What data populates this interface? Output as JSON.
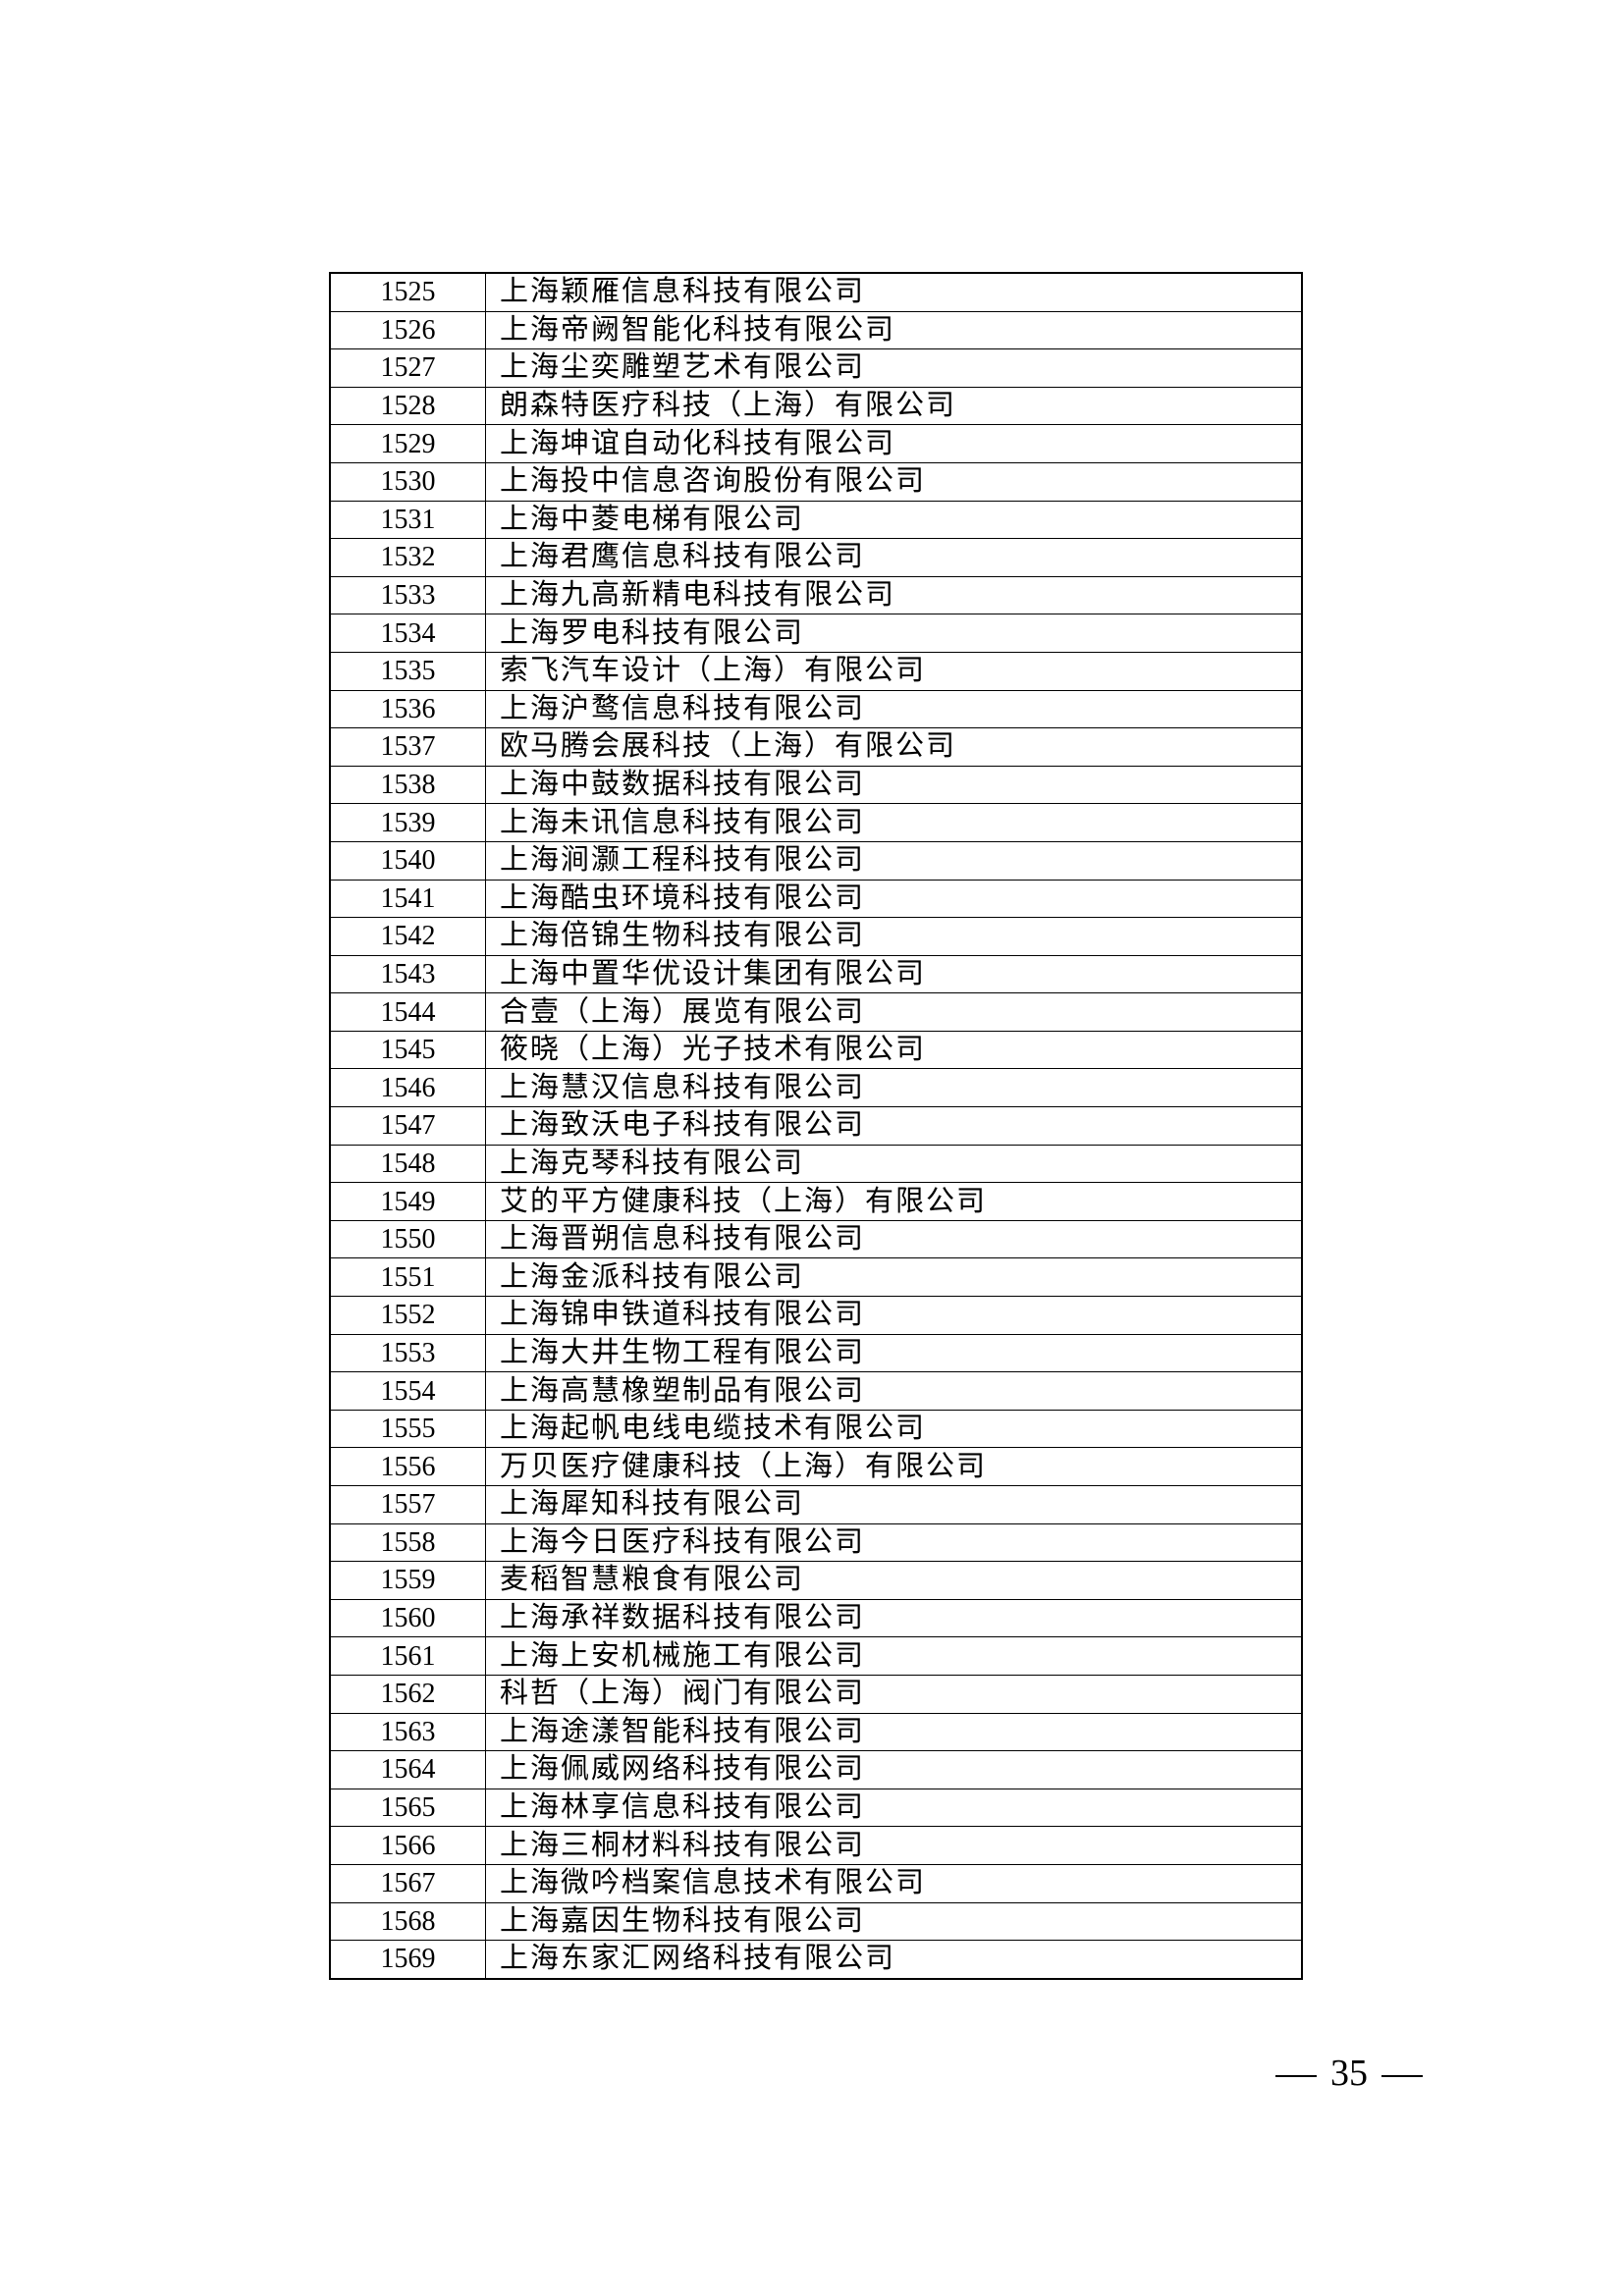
{
  "rows": [
    {
      "no": "1525",
      "name": "上海颖雁信息科技有限公司"
    },
    {
      "no": "1526",
      "name": "上海帝阙智能化科技有限公司"
    },
    {
      "no": "1527",
      "name": "上海尘奕雕塑艺术有限公司"
    },
    {
      "no": "1528",
      "name": "朗森特医疗科技（上海）有限公司"
    },
    {
      "no": "1529",
      "name": "上海坤谊自动化科技有限公司"
    },
    {
      "no": "1530",
      "name": "上海投中信息咨询股份有限公司"
    },
    {
      "no": "1531",
      "name": "上海中菱电梯有限公司"
    },
    {
      "no": "1532",
      "name": "上海君鹰信息科技有限公司"
    },
    {
      "no": "1533",
      "name": "上海九高新精电科技有限公司"
    },
    {
      "no": "1534",
      "name": "上海罗电科技有限公司"
    },
    {
      "no": "1535",
      "name": "索飞汽车设计（上海）有限公司"
    },
    {
      "no": "1536",
      "name": "上海沪鹜信息科技有限公司"
    },
    {
      "no": "1537",
      "name": "欧马腾会展科技（上海）有限公司"
    },
    {
      "no": "1538",
      "name": "上海中鼓数据科技有限公司"
    },
    {
      "no": "1539",
      "name": "上海未讯信息科技有限公司"
    },
    {
      "no": "1540",
      "name": "上海涧灏工程科技有限公司"
    },
    {
      "no": "1541",
      "name": "上海酷虫环境科技有限公司"
    },
    {
      "no": "1542",
      "name": "上海倍锦生物科技有限公司"
    },
    {
      "no": "1543",
      "name": "上海中置华优设计集团有限公司"
    },
    {
      "no": "1544",
      "name": "合壹（上海）展览有限公司"
    },
    {
      "no": "1545",
      "name": "筱晓（上海）光子技术有限公司"
    },
    {
      "no": "1546",
      "name": "上海慧汉信息科技有限公司"
    },
    {
      "no": "1547",
      "name": "上海致沃电子科技有限公司"
    },
    {
      "no": "1548",
      "name": "上海克琴科技有限公司"
    },
    {
      "no": "1549",
      "name": "艾的平方健康科技（上海）有限公司"
    },
    {
      "no": "1550",
      "name": "上海晋朔信息科技有限公司"
    },
    {
      "no": "1551",
      "name": "上海金派科技有限公司"
    },
    {
      "no": "1552",
      "name": "上海锦申铁道科技有限公司"
    },
    {
      "no": "1553",
      "name": "上海大井生物工程有限公司"
    },
    {
      "no": "1554",
      "name": "上海高慧橡塑制品有限公司"
    },
    {
      "no": "1555",
      "name": "上海起帆电线电缆技术有限公司"
    },
    {
      "no": "1556",
      "name": "万贝医疗健康科技（上海）有限公司"
    },
    {
      "no": "1557",
      "name": "上海犀知科技有限公司"
    },
    {
      "no": "1558",
      "name": "上海今日医疗科技有限公司"
    },
    {
      "no": "1559",
      "name": "麦稻智慧粮食有限公司"
    },
    {
      "no": "1560",
      "name": "上海承祥数据科技有限公司"
    },
    {
      "no": "1561",
      "name": "上海上安机械施工有限公司"
    },
    {
      "no": "1562",
      "name": "科哲（上海）阀门有限公司"
    },
    {
      "no": "1563",
      "name": "上海途漾智能科技有限公司"
    },
    {
      "no": "1564",
      "name": "上海佩威网络科技有限公司"
    },
    {
      "no": "1565",
      "name": "上海林享信息科技有限公司"
    },
    {
      "no": "1566",
      "name": "上海三桐材料科技有限公司"
    },
    {
      "no": "1567",
      "name": "上海微吟档案信息技术有限公司"
    },
    {
      "no": "1568",
      "name": "上海嘉因生物科技有限公司"
    },
    {
      "no": "1569",
      "name": "上海东家汇网络科技有限公司"
    }
  ],
  "page_number": "35"
}
